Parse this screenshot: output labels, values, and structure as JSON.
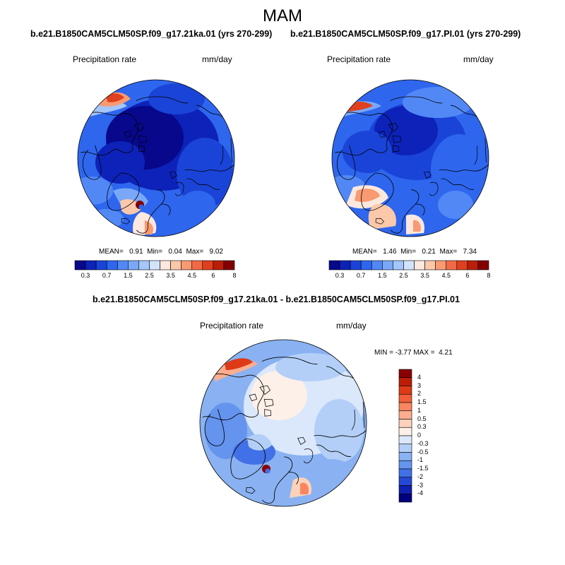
{
  "figure": {
    "title": "MAM",
    "panels": [
      {
        "id": "left",
        "subtitle": "b.e21.B1850CAM5CLM50SP.f09_g17.21ka.01 (yrs 270-299)",
        "variable": "Precipitation rate",
        "units": "mm/day",
        "stats": {
          "mean_label": "MEAN=",
          "mean": "0.91",
          "min_label": "Min=",
          "min": "0.04",
          "max_label": "Max=",
          "max": "9.02"
        }
      },
      {
        "id": "right",
        "subtitle": "b.e21.B1850CAM5CLM50SP.f09_g17.PI.01 (yrs 270-299)",
        "variable": "Precipitation rate",
        "units": "mm/day",
        "stats": {
          "mean_label": "MEAN=",
          "mean": "1.46",
          "min_label": "Min=",
          "min": "0.21",
          "max_label": "Max=",
          "max": "7.34"
        }
      },
      {
        "id": "diff",
        "subtitle": "b.e21.B1850CAM5CLM50SP.f09_g17.21ka.01 - b.e21.B1850CAM5CLM50SP.f09_g17.PI.01",
        "variable": "Precipitation rate",
        "units": "mm/day",
        "stats": {
          "min_label": "MIN =",
          "min": "-3.77",
          "max_label": "MAX =",
          "max": "4.21"
        }
      }
    ],
    "colorbar_abs": {
      "colors": [
        "#08088c",
        "#0d22b8",
        "#1a44d8",
        "#2e66ee",
        "#5288f5",
        "#7aa8f8",
        "#a4c6fa",
        "#d2e4fd",
        "#fde8de",
        "#fcc8aa",
        "#f99a72",
        "#f26a45",
        "#e0401e",
        "#bb1e08",
        "#820000"
      ],
      "ticks": [
        "0.3",
        "0.7",
        "1.5",
        "2.5",
        "3.5",
        "4.5",
        "6",
        "8"
      ]
    },
    "colorbar_diff": {
      "colors_top_to_bottom": [
        "#8a0000",
        "#bd1d06",
        "#de3a18",
        "#f25e3a",
        "#f98660",
        "#fcae8e",
        "#fdd2ba",
        "#fdf0e8",
        "#dbe8fb",
        "#b3cff7",
        "#8ab2f2",
        "#6494ee",
        "#4270e6",
        "#2648d6",
        "#1020b0",
        "#00007e"
      ],
      "ticks_top_to_bottom": [
        "4",
        "3",
        "2",
        "1.5",
        "1",
        "0.5",
        "0.3",
        "0",
        "-0.3",
        "-0.5",
        "-1",
        "-1.5",
        "-2",
        "-3",
        "-4"
      ]
    }
  }
}
